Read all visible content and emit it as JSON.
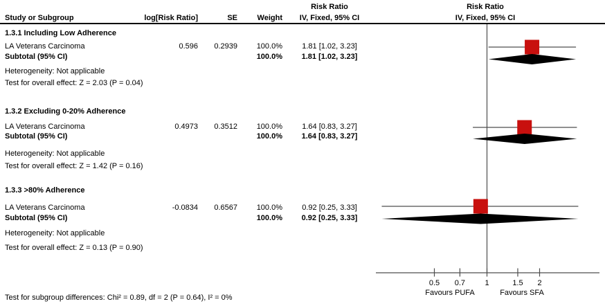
{
  "columns": {
    "study": "Study or Subgroup",
    "log_effect": "log[Risk Ratio]",
    "se": "SE",
    "weight": "Weight",
    "effect_header_line1": "Risk Ratio",
    "effect_header_line2": "IV, Fixed, 95% CI",
    "plot_header_line1": "Risk Ratio",
    "plot_header_line2": "IV, Fixed, 95% CI"
  },
  "subgroups": [
    {
      "title": "1.3.1 Including Low Adherence",
      "study": {
        "name": "LA Veterans Carcinoma",
        "log_rr": "0.596",
        "se": "0.2939",
        "weight": "100.0%",
        "estimate_ci": "1.81 [1.02, 3.23]"
      },
      "subtotal": {
        "label": "Subtotal (95% CI)",
        "weight": "100.0%",
        "estimate_ci": "1.81 [1.02, 3.23]"
      },
      "heterogeneity": "Heterogeneity: Not applicable",
      "overall_effect_test": "Test for overall effect: Z = 2.03 (P = 0.04)"
    },
    {
      "title": "1.3.2 Excluding 0-20% Adherence",
      "study": {
        "name": "LA Veterans Carcinoma",
        "log_rr": "0.4973",
        "se": "0.3512",
        "weight": "100.0%",
        "estimate_ci": "1.64 [0.83, 3.27]"
      },
      "subtotal": {
        "label": "Subtotal (95% CI)",
        "weight": "100.0%",
        "estimate_ci": "1.64 [0.83, 3.27]"
      },
      "heterogeneity": "Heterogeneity: Not applicable",
      "overall_effect_test": "Test for overall effect: Z = 1.42 (P = 0.16)"
    },
    {
      "title": "1.3.3 >80% Adherence",
      "study": {
        "name": "LA Veterans Carcinoma",
        "log_rr": "-0.0834",
        "se": "0.6567",
        "weight": "100.0%",
        "estimate_ci": "0.92 [0.25, 3.33]"
      },
      "subtotal": {
        "label": "Subtotal (95% CI)",
        "weight": "100.0%",
        "estimate_ci": "0.92 [0.25, 3.33]"
      },
      "heterogeneity": "Heterogeneity: Not applicable",
      "overall_effect_test": "Test for overall effect: Z = 0.13 (P = 0.90)"
    }
  ],
  "footnote": "Test for subgroup differences: Chi² = 0.89, df = 2 (P = 0.64), I² = 0%",
  "colors": {
    "background": "#ffffff",
    "text": "#000000",
    "marker": "#c8100e",
    "diamond": "#000000",
    "line": "#4d4d4d",
    "header_rule": "#000000"
  },
  "chart_data": {
    "type": "forest",
    "effect_measure": "Risk Ratio",
    "model": "IV, Fixed, 95% CI",
    "x_axis": {
      "scale": "log",
      "ticks": [
        0.5,
        0.7,
        1,
        1.5,
        2
      ],
      "tick_labels": [
        "0.5",
        "0.7",
        "1",
        "1.5",
        "2"
      ],
      "range": [
        0.23,
        4.4
      ],
      "null_line": 1,
      "left_label": "Favours PUFA",
      "right_label": "Favours SFA"
    },
    "subgroups": [
      {
        "name": "1.3.1 Including Low Adherence",
        "studies": [
          {
            "label": "LA Veterans Carcinoma",
            "log_risk_ratio": 0.596,
            "se": 0.2939,
            "weight_pct": 100.0,
            "risk_ratio": 1.81,
            "ci_low": 1.02,
            "ci_high": 3.23
          }
        ],
        "subtotal": {
          "risk_ratio": 1.81,
          "ci_low": 1.02,
          "ci_high": 3.23,
          "weight_pct": 100.0
        },
        "heterogeneity": "Not applicable",
        "overall_effect": "Z = 2.03 (P = 0.04)"
      },
      {
        "name": "1.3.2 Excluding 0-20% Adherence",
        "studies": [
          {
            "label": "LA Veterans Carcinoma",
            "log_risk_ratio": 0.4973,
            "se": 0.3512,
            "weight_pct": 100.0,
            "risk_ratio": 1.64,
            "ci_low": 0.83,
            "ci_high": 3.27
          }
        ],
        "subtotal": {
          "risk_ratio": 1.64,
          "ci_low": 0.83,
          "ci_high": 3.27,
          "weight_pct": 100.0
        },
        "heterogeneity": "Not applicable",
        "overall_effect": "Z = 1.42 (P = 0.16)"
      },
      {
        "name": "1.3.3 >80% Adherence",
        "studies": [
          {
            "label": "LA Veterans Carcinoma",
            "log_risk_ratio": -0.0834,
            "se": 0.6567,
            "weight_pct": 100.0,
            "risk_ratio": 0.92,
            "ci_low": 0.25,
            "ci_high": 3.33
          }
        ],
        "subtotal": {
          "risk_ratio": 0.92,
          "ci_low": 0.25,
          "ci_high": 3.33,
          "weight_pct": 100.0
        },
        "heterogeneity": "Not applicable",
        "overall_effect": "Z = 0.13 (P = 0.90)"
      }
    ],
    "subgroup_differences_test": "Chi² = 0.89, df = 2 (P = 0.64), I² = 0%"
  }
}
